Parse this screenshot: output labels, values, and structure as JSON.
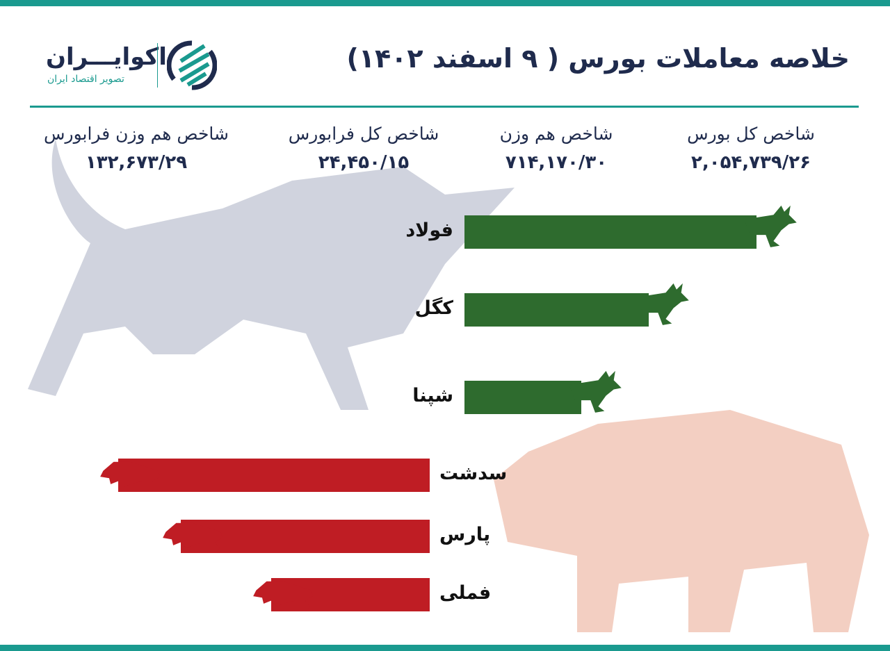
{
  "header": {
    "title": "خلاصه معاملات بورس ( ۹ اسفند ۱۴۰۲)"
  },
  "logo": {
    "name": "اکوایـــران",
    "tagline": "تصویر اقتصاد ایران"
  },
  "indices": [
    {
      "label": "شاخص کل بورس",
      "value": "۲,۰۵۴,۷۳۹/۲۶"
    },
    {
      "label": "شاخص هم وزن",
      "value": "۷۱۴,۱۷۰/۳۰"
    },
    {
      "label": "شاخص کل فرابورس",
      "value": "۲۴,۴۵۰/۱۵"
    },
    {
      "label": "شاخص هم وزن فرابورس",
      "value": "۱۳۲,۶۷۳/۲۹"
    }
  ],
  "gainers": [
    {
      "name": "فولاد",
      "relative": 1.0
    },
    {
      "name": "کگل",
      "relative": 0.63
    },
    {
      "name": "شپنا",
      "relative": 0.4
    }
  ],
  "losers": [
    {
      "name": "سدشت",
      "relative": 1.0
    },
    {
      "name": "پارس",
      "relative": 0.8
    },
    {
      "name": "فملی",
      "relative": 0.51
    }
  ],
  "colors": {
    "accent": "#1a9a8f",
    "text": "#1f2b4d",
    "gain": "#2e6b2e",
    "loss": "#bf1d24"
  },
  "icons": {
    "gainer": "bull-icon",
    "loser": "bear-icon"
  }
}
